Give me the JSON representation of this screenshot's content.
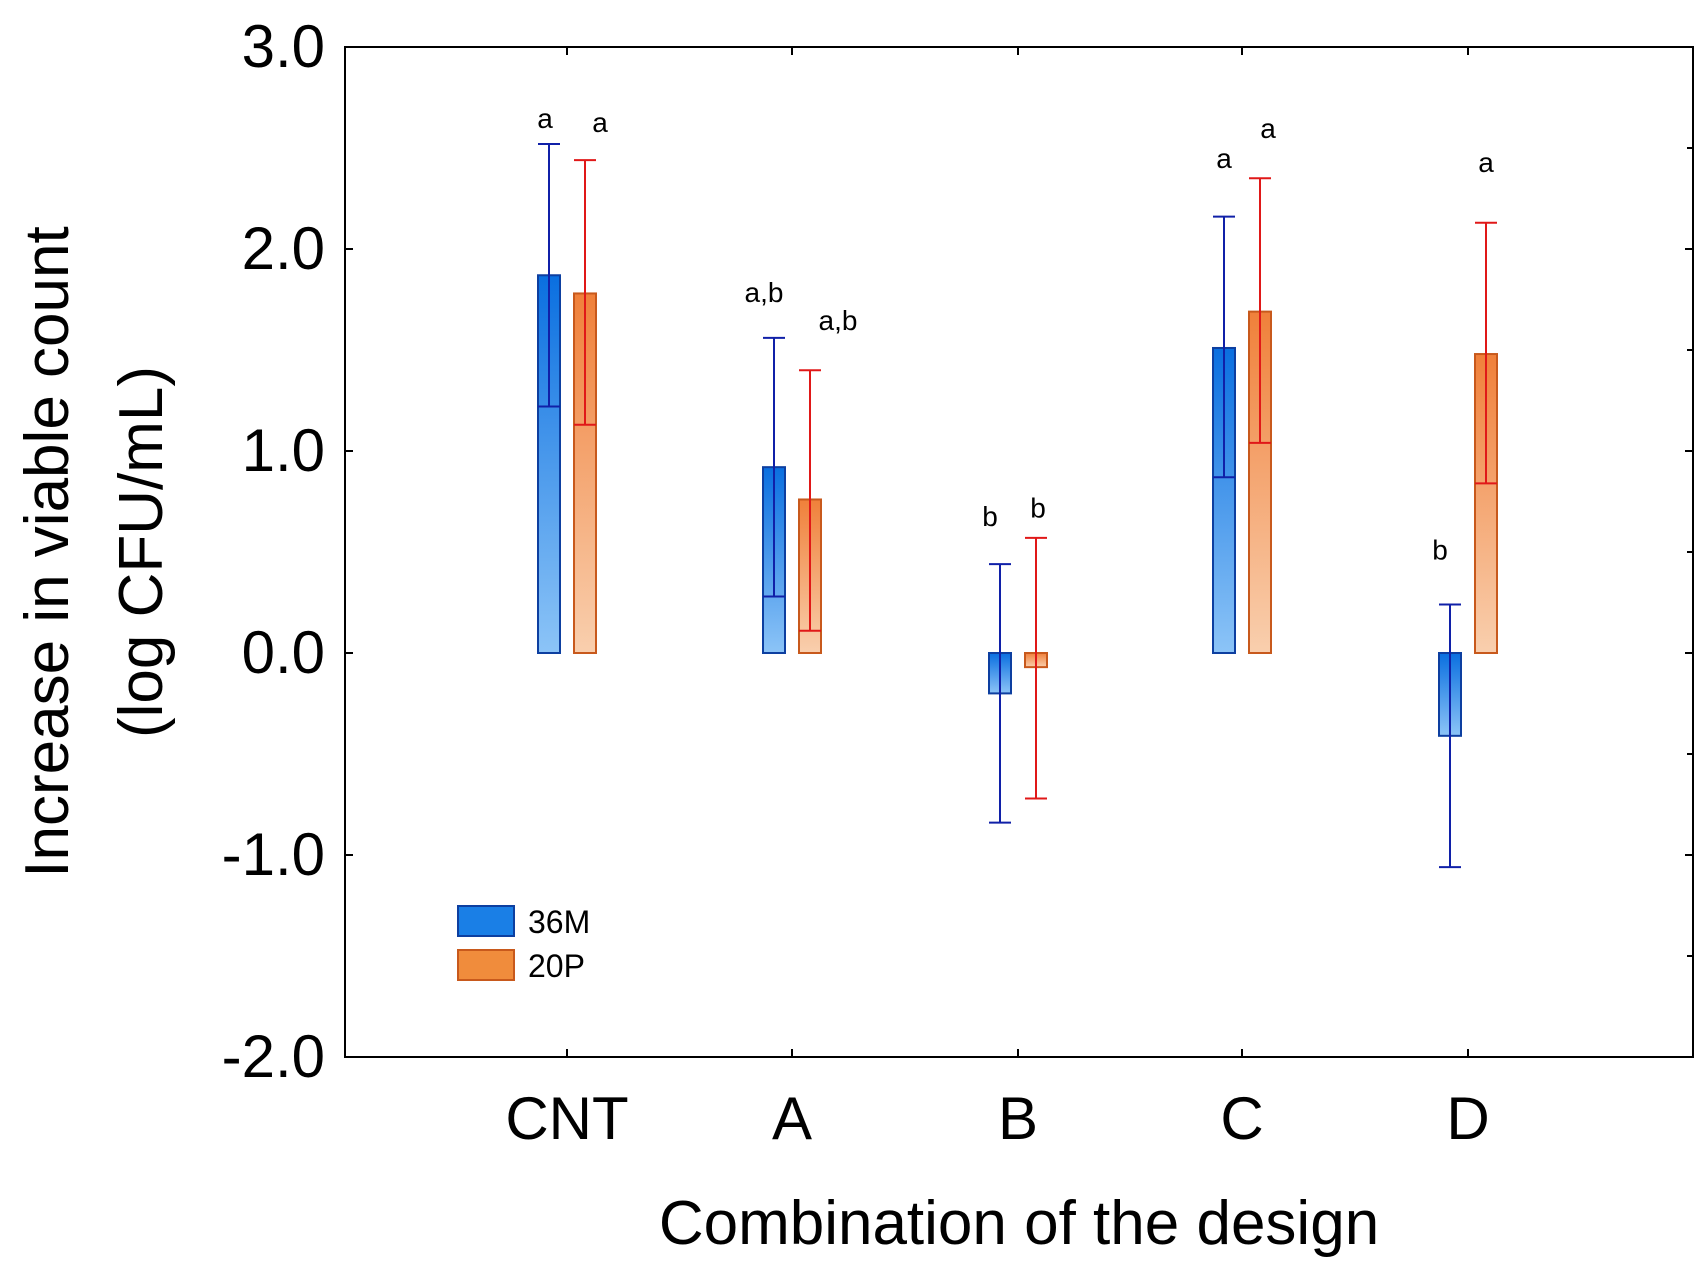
{
  "chart_data": {
    "type": "bar",
    "title": "",
    "xlabel": "Combination of the design",
    "ylabel_line1": "Increase in viable count",
    "ylabel_line2": "(log CFU/mL)",
    "ylim": [
      -2.0,
      3.0
    ],
    "yticks": [
      {
        "value": 3.0,
        "label": "3.0"
      },
      {
        "value": 2.0,
        "label": "2.0"
      },
      {
        "value": 1.0,
        "label": "1.0"
      },
      {
        "value": 0.0,
        "label": "0.0"
      },
      {
        "value": -1.0,
        "label": "-1.0"
      },
      {
        "value": -2.0,
        "label": "-2.0"
      }
    ],
    "categories": [
      "CNT",
      "A",
      "B",
      "C",
      "D"
    ],
    "series": [
      {
        "name": "36M",
        "color": "#1a7fe6",
        "values": [
          1.87,
          0.92,
          -0.2,
          1.51,
          -0.41
        ],
        "error_upper": [
          2.52,
          1.56,
          0.44,
          2.16,
          0.24
        ],
        "error_lower": [
          1.22,
          0.28,
          -0.84,
          0.87,
          -1.06
        ],
        "letters": [
          "a",
          "a,b",
          "b",
          "a",
          "b"
        ]
      },
      {
        "name": "20P",
        "color": "#f08c3c",
        "values": [
          1.78,
          0.76,
          -0.07,
          1.69,
          1.48
        ],
        "error_upper": [
          2.44,
          1.4,
          0.57,
          2.35,
          2.13
        ],
        "error_lower": [
          1.13,
          0.11,
          -0.72,
          1.04,
          0.84
        ],
        "letters": [
          "a",
          "a,b",
          "b",
          "a",
          "a"
        ]
      }
    ],
    "legend": {
      "position": "bottom-left",
      "entries": [
        "36M",
        "20P"
      ]
    },
    "grid": false
  }
}
